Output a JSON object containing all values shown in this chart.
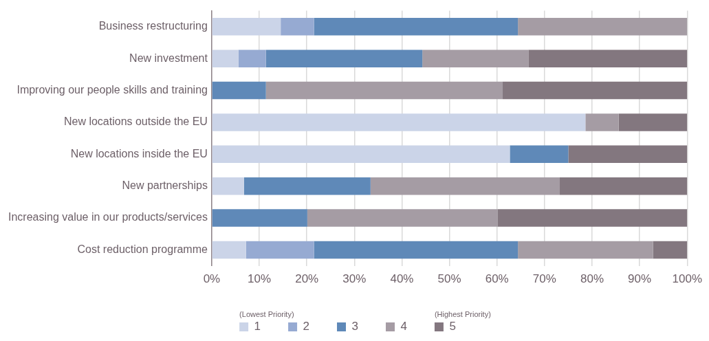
{
  "chart_data": {
    "type": "bar",
    "orientation": "horizontal",
    "stacked": true,
    "categories": [
      "Business restructuring",
      "New investment",
      "Improving our people skills and training",
      "New locations outside the EU",
      "New locations inside the EU",
      "New partnerships",
      "Increasing value in our products/services",
      "Cost reduction programme"
    ],
    "series": [
      {
        "name": "1",
        "color": "#cbd4e8",
        "values": [
          14.5,
          5.6,
          0,
          78.6,
          62.7,
          6.8,
          0,
          7.2
        ]
      },
      {
        "name": "2",
        "color": "#96aad2",
        "values": [
          7.0,
          5.8,
          0,
          0,
          0,
          0,
          0,
          14.3
        ]
      },
      {
        "name": "3",
        "color": "#5f89b8",
        "values": [
          42.9,
          32.9,
          11.4,
          0,
          12.3,
          26.6,
          20.1,
          42.9
        ]
      },
      {
        "name": "4",
        "color": "#a59ca4",
        "values": [
          35.6,
          22.3,
          49.8,
          7.0,
          0,
          39.8,
          40.0,
          28.4
        ]
      },
      {
        "name": "5",
        "color": "#83777f",
        "values": [
          0,
          33.4,
          38.8,
          14.4,
          25.0,
          26.8,
          39.9,
          7.2
        ]
      }
    ],
    "xlim": [
      0,
      100
    ],
    "xticks": [
      {
        "value": 0,
        "label": "0%"
      },
      {
        "value": 10,
        "label": "10%"
      },
      {
        "value": 20,
        "label": "20%"
      },
      {
        "value": 30,
        "label": "30%"
      },
      {
        "value": 40,
        "label": "40%"
      },
      {
        "value": 50,
        "label": "50%"
      },
      {
        "value": 60,
        "label": "60%"
      },
      {
        "value": 70,
        "label": "70%"
      },
      {
        "value": 80,
        "label": "80%"
      },
      {
        "value": 90,
        "label": "90%"
      },
      {
        "value": 100,
        "label": "100%"
      }
    ],
    "grid": "x",
    "legend": "bottom",
    "annotations": [
      "(Lowest Priority)",
      "(Highest Priority)"
    ]
  }
}
